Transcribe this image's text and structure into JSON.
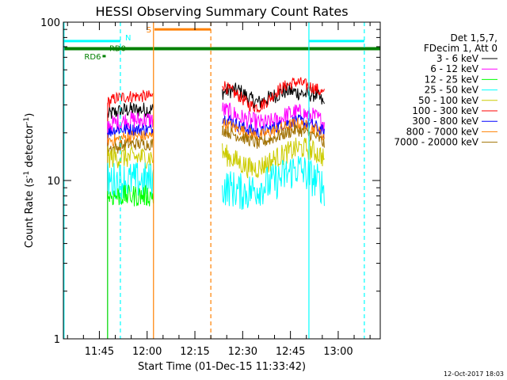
{
  "chart_data": {
    "type": "line",
    "title": "HESSI Observing Summary Count Rates",
    "xlabel": "Start Time (01-Dec-15 11:33:42)",
    "ylabel_main": "Count Rate (s",
    "ylabel_sup1": "-1",
    "ylabel_mid": " detector",
    "ylabel_sup2": "-1",
    "ylabel_end": ")",
    "y_scale": "log",
    "ylim": [
      1,
      100
    ],
    "y_ticks": [
      {
        "value": 1,
        "label": "1"
      },
      {
        "value": 10,
        "label": "10"
      },
      {
        "value": 100,
        "label": "100"
      }
    ],
    "x_ticks": [
      {
        "value": 705,
        "label": "11:45"
      },
      {
        "value": 720,
        "label": "12:00"
      },
      {
        "value": 735,
        "label": "12:15"
      },
      {
        "value": 750,
        "label": "12:30"
      },
      {
        "value": 765,
        "label": "12:45"
      },
      {
        "value": 780,
        "label": "13:00"
      }
    ],
    "xlim_minutes": [
      693.7,
      793.2
    ],
    "legend": {
      "position": "right",
      "header": [
        "Det 1,5,7,",
        "FDecim 1, Att 0"
      ],
      "entries": [
        {
          "label": "3 - 6 keV",
          "color": "#000000"
        },
        {
          "label": "6 - 12 keV",
          "color": "#ff00ff"
        },
        {
          "label": "12 - 25 keV",
          "color": "#00ff00"
        },
        {
          "label": "25 - 50 keV",
          "color": "#00ffff"
        },
        {
          "label": "50 - 100 keV",
          "color": "#cccc00"
        },
        {
          "label": "100 - 300 keV",
          "color": "#ff0000"
        },
        {
          "label": "300 - 800 keV",
          "color": "#0000ff"
        },
        {
          "label": "800 - 7000 keV",
          "color": "#ff8000"
        },
        {
          "label": "7000 - 20000 keV",
          "color": "#a07000"
        }
      ]
    },
    "flags": [
      {
        "label": "N",
        "color": "#00ffff",
        "segments": [
          [
            693.7,
            711.6
          ],
          [
            770.8,
            788.2
          ]
        ],
        "level": 76
      },
      {
        "label": "S",
        "color": "#ff8000",
        "segments": [
          [
            722.3,
            740.0
          ]
        ],
        "level": 90
      },
      {
        "label": "RD0",
        "color": "#008000",
        "segments": [
          [
            693.7,
            793.2
          ]
        ],
        "level": 68
      },
      {
        "label": "RD6",
        "color": "#008000",
        "segments": [
          [
            706.0,
            707.0
          ]
        ],
        "level": 61
      }
    ],
    "vlines": [
      {
        "minute": 693.9,
        "color": "#00ffff",
        "style": "solid"
      },
      {
        "minute": 711.6,
        "color": "#00ffff",
        "style": "dashed"
      },
      {
        "minute": 722.0,
        "color": "#ff8000",
        "style": "solid"
      },
      {
        "minute": 740.0,
        "color": "#ff8000",
        "style": "dashed"
      },
      {
        "minute": 770.8,
        "color": "#00ffff",
        "style": "solid"
      },
      {
        "minute": 788.2,
        "color": "#00ffff",
        "style": "dashed"
      }
    ],
    "intervals": [
      {
        "start": 707.6,
        "end": 722.0,
        "spike_from": 1
      },
      {
        "start": 743.6,
        "end": 775.7
      }
    ],
    "series": [
      {
        "name": "3 - 6 keV",
        "color": "#000000",
        "noise": 0.05,
        "values": [
          [
            707.6,
            26
          ],
          [
            710,
            27
          ],
          [
            714,
            28
          ],
          [
            718,
            28
          ],
          [
            722,
            28
          ],
          [
            743.6,
            36
          ],
          [
            746,
            37
          ],
          [
            749,
            37
          ],
          [
            752,
            33
          ],
          [
            755,
            31
          ],
          [
            758,
            33
          ],
          [
            761,
            35
          ],
          [
            764,
            37
          ],
          [
            767,
            36
          ],
          [
            770,
            35
          ],
          [
            773,
            35
          ],
          [
            775.7,
            30
          ]
        ]
      },
      {
        "name": "100 - 300 keV",
        "color": "#ff0000",
        "noise": 0.04,
        "values": [
          [
            707.6,
            31
          ],
          [
            710,
            33
          ],
          [
            714,
            34
          ],
          [
            718,
            34
          ],
          [
            722,
            34
          ],
          [
            743.6,
            41
          ],
          [
            746,
            37
          ],
          [
            749,
            34
          ],
          [
            752,
            30
          ],
          [
            755,
            29
          ],
          [
            758,
            32
          ],
          [
            761,
            37
          ],
          [
            764,
            40
          ],
          [
            767,
            42
          ],
          [
            770,
            40
          ],
          [
            773,
            38
          ],
          [
            775.7,
            35
          ]
        ]
      },
      {
        "name": "6 - 12 keV",
        "color": "#ff00ff",
        "noise": 0.06,
        "values": [
          [
            707.6,
            22
          ],
          [
            710,
            23
          ],
          [
            714,
            24
          ],
          [
            718,
            24
          ],
          [
            722,
            24
          ],
          [
            743.6,
            28
          ],
          [
            746,
            27
          ],
          [
            749,
            25
          ],
          [
            752,
            24
          ],
          [
            755,
            23
          ],
          [
            758,
            23
          ],
          [
            761,
            24
          ],
          [
            764,
            26
          ],
          [
            767,
            27
          ],
          [
            770,
            26
          ],
          [
            773,
            25
          ],
          [
            775.7,
            23
          ]
        ]
      },
      {
        "name": "300 - 800 keV",
        "color": "#0000ff",
        "noise": 0.04,
        "values": [
          [
            707.6,
            20
          ],
          [
            710,
            21
          ],
          [
            714,
            21
          ],
          [
            718,
            21
          ],
          [
            722,
            21
          ],
          [
            743.6,
            25
          ],
          [
            746,
            24
          ],
          [
            749,
            22
          ],
          [
            752,
            21
          ],
          [
            755,
            20
          ],
          [
            758,
            21
          ],
          [
            761,
            22
          ],
          [
            764,
            23
          ],
          [
            767,
            24
          ],
          [
            770,
            23
          ],
          [
            773,
            22
          ],
          [
            775.7,
            20
          ]
        ]
      },
      {
        "name": "800 - 7000 keV",
        "color": "#ff8000",
        "noise": 0.04,
        "values": [
          [
            707.6,
            18
          ],
          [
            710,
            18
          ],
          [
            714,
            19
          ],
          [
            718,
            19
          ],
          [
            722,
            19
          ],
          [
            743.6,
            23
          ],
          [
            746,
            22
          ],
          [
            749,
            21
          ],
          [
            752,
            20
          ],
          [
            755,
            19
          ],
          [
            758,
            20
          ],
          [
            761,
            21
          ],
          [
            764,
            22
          ],
          [
            767,
            23
          ],
          [
            770,
            22
          ],
          [
            773,
            21
          ],
          [
            775.7,
            19
          ]
        ]
      },
      {
        "name": "7000 - 20000 keV",
        "color": "#a07000",
        "noise": 0.04,
        "values": [
          [
            707.6,
            16
          ],
          [
            710,
            16
          ],
          [
            714,
            17
          ],
          [
            718,
            17
          ],
          [
            722,
            17
          ],
          [
            743.6,
            21
          ],
          [
            746,
            20
          ],
          [
            749,
            19
          ],
          [
            752,
            18
          ],
          [
            755,
            17
          ],
          [
            758,
            18
          ],
          [
            761,
            19
          ],
          [
            764,
            20
          ],
          [
            767,
            21
          ],
          [
            770,
            20
          ],
          [
            773,
            19
          ],
          [
            775.7,
            17
          ]
        ]
      },
      {
        "name": "50 - 100 keV",
        "color": "#cccc00",
        "noise": 0.07,
        "values": [
          [
            707.6,
            14
          ],
          [
            710,
            14
          ],
          [
            714,
            14
          ],
          [
            718,
            14
          ],
          [
            722,
            14
          ],
          [
            743.6,
            15
          ],
          [
            746,
            14
          ],
          [
            749,
            13
          ],
          [
            752,
            12
          ],
          [
            755,
            12
          ],
          [
            758,
            13
          ],
          [
            761,
            14
          ],
          [
            764,
            15
          ],
          [
            767,
            16
          ],
          [
            770,
            16
          ],
          [
            773,
            15
          ],
          [
            775.7,
            14
          ]
        ]
      },
      {
        "name": "25 - 50 keV",
        "color": "#00ffff",
        "noise": 0.12,
        "values": [
          [
            707.6,
            10
          ],
          [
            710,
            10
          ],
          [
            714,
            10
          ],
          [
            718,
            10
          ],
          [
            722,
            10
          ],
          [
            743.6,
            9
          ],
          [
            746,
            9
          ],
          [
            749,
            8.5
          ],
          [
            752,
            8.5
          ],
          [
            755,
            9
          ],
          [
            758,
            9.5
          ],
          [
            761,
            10
          ],
          [
            764,
            11
          ],
          [
            767,
            12
          ],
          [
            770,
            11
          ],
          [
            773,
            10
          ],
          [
            775.7,
            9
          ]
        ]
      },
      {
        "name": "12 - 25 keV",
        "color": "#00ff00",
        "noise": 0.07,
        "values": [
          [
            707.6,
            8
          ],
          [
            710,
            8
          ],
          [
            714,
            8
          ],
          [
            718,
            8
          ],
          [
            722,
            8
          ]
        ]
      }
    ],
    "footer": "12-Oct-2017 18:03"
  }
}
